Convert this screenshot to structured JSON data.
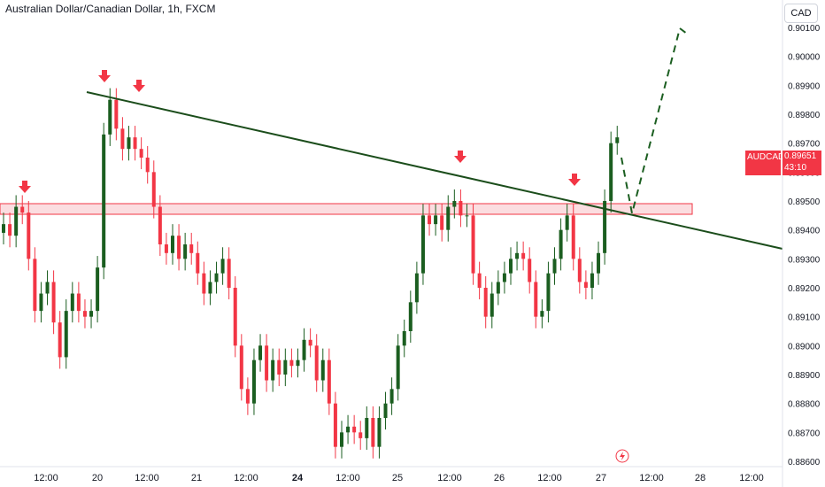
{
  "header": {
    "title": "Australian Dollar/Canadian Dollar, 1h, FXCM",
    "currency_button": "CAD"
  },
  "price_tag": {
    "symbol": "AUDCAD",
    "price": "0.89651",
    "countdown": "43:10"
  },
  "colors": {
    "up": "#1b5e20",
    "down": "#f23645",
    "trendline": "#1b4d1b",
    "zone_fill": "#f9c7cb",
    "zone_border": "#f23645",
    "arrow": "#f23645",
    "projection": "#1b5e20"
  },
  "chart_data": {
    "type": "candlestick",
    "title": "Australian Dollar/Canadian Dollar, 1h, FXCM",
    "yaxis": {
      "ticks": [
        "0.90100",
        "0.90000",
        "0.89900",
        "0.89800",
        "0.89700",
        "0.89600",
        "0.89500",
        "0.89400",
        "0.89300",
        "0.89200",
        "0.89100",
        "0.89000",
        "0.88900",
        "0.88800",
        "0.88700",
        "0.88600"
      ],
      "range": [
        0.886,
        0.9012
      ]
    },
    "xaxis": {
      "ticks": [
        "12:00",
        "20",
        "12:00",
        "21",
        "12:00",
        "24",
        "12:00",
        "25",
        "12:00",
        "26",
        "12:00",
        "27",
        "12:00",
        "28",
        "12:00"
      ],
      "bold_index": 5
    },
    "close_series": [
      0.8942,
      0.8938,
      0.8948,
      0.8946,
      0.893,
      0.8912,
      0.8918,
      0.8922,
      0.8908,
      0.8896,
      0.8912,
      0.8918,
      0.8912,
      0.891,
      0.8912,
      0.8927,
      0.8973,
      0.8985,
      0.8975,
      0.8968,
      0.8972,
      0.8968,
      0.8965,
      0.896,
      0.8948,
      0.8935,
      0.8932,
      0.8938,
      0.893,
      0.8935,
      0.8932,
      0.8925,
      0.8918,
      0.8922,
      0.8925,
      0.893,
      0.892,
      0.89,
      0.8885,
      0.888,
      0.8895,
      0.89,
      0.8888,
      0.8895,
      0.889,
      0.8895,
      0.8893,
      0.8895,
      0.8902,
      0.89,
      0.8888,
      0.8895,
      0.888,
      0.8865,
      0.887,
      0.8872,
      0.887,
      0.8868,
      0.8875,
      0.8865,
      0.8875,
      0.888,
      0.8885,
      0.89,
      0.8905,
      0.8915,
      0.8925,
      0.8945,
      0.8942,
      0.8945,
      0.894,
      0.8948,
      0.895,
      0.8945,
      0.8945,
      0.8925,
      0.892,
      0.891,
      0.8918,
      0.8922,
      0.8925,
      0.893,
      0.8932,
      0.893,
      0.8922,
      0.891,
      0.8912,
      0.8925,
      0.893,
      0.894,
      0.8945,
      0.893,
      0.8922,
      0.892,
      0.8925,
      0.8932,
      0.895,
      0.897,
      0.8972,
      0.8965
    ],
    "resistance_zone": [
      0.89459,
      0.89469
    ],
    "trendline": [
      [
        0.8987,
        0.8934
      ]
    ],
    "projection": [
      0.8965,
      0.89455,
      0.9009
    ],
    "markers": [
      "arrow-down",
      "arrow-down",
      "arrow-down",
      "arrow-down",
      "arrow-down"
    ],
    "last_price": "0.89651"
  }
}
